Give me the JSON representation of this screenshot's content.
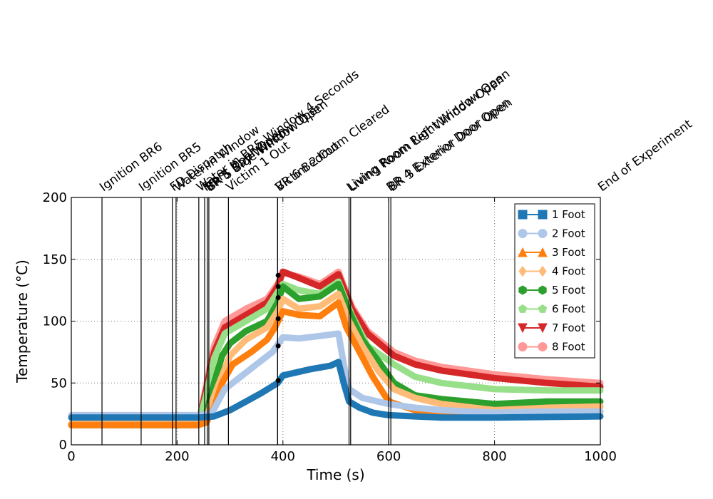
{
  "chart_data": {
    "type": "line",
    "title": "",
    "xlabel": "Time (s)",
    "ylabel": "Temperature (°C)",
    "xlim": [
      0,
      1000
    ],
    "ylim": [
      0,
      200
    ],
    "xticks": [
      0,
      200,
      400,
      600,
      800,
      1000
    ],
    "yticks": [
      0,
      50,
      100,
      150,
      200
    ],
    "grid": "dotted",
    "legend_position": "top-right",
    "events": [
      {
        "t": 58,
        "label": "Ignition BR6"
      },
      {
        "t": 132,
        "label": "Ignition BR5"
      },
      {
        "t": 191,
        "label": "FD Dispatch"
      },
      {
        "t": 198,
        "label": "Water in Window"
      },
      {
        "t": 241,
        "label": "Water in BR5 Window 4 Seconds"
      },
      {
        "t": 252,
        "label": "Front Door Open"
      },
      {
        "t": 257,
        "label": "BR 5 Bay Window Open"
      },
      {
        "t": 260,
        "label": "BR 5 Side Window Open"
      },
      {
        "t": 297,
        "label": "Victim 1 Out"
      },
      {
        "t": 390,
        "label": "Victim 2 Out"
      },
      {
        "t": 390,
        "label": "BR 6 Bedroom Cleared"
      },
      {
        "t": 525,
        "label": "Living Room Right Window Open"
      },
      {
        "t": 528,
        "label": "Living Room Left Window Open"
      },
      {
        "t": 600,
        "label": "BR 4 Exterior Door Open"
      },
      {
        "t": 604,
        "label": "BR 3 Exterior Door Open"
      },
      {
        "t": 1000,
        "label": "End of Experiment"
      }
    ],
    "markers": [
      {
        "x": 391,
        "y": 137
      },
      {
        "x": 391,
        "y": 128
      },
      {
        "x": 391,
        "y": 119
      },
      {
        "x": 391,
        "y": 102
      },
      {
        "x": 391,
        "y": 80
      },
      {
        "x": 391,
        "y": 52
      }
    ],
    "series": [
      {
        "name": "1 Foot",
        "color": "#1f77b4",
        "marker": "square",
        "points": [
          [
            0,
            22
          ],
          [
            240,
            22
          ],
          [
            270,
            23
          ],
          [
            300,
            28
          ],
          [
            330,
            35
          ],
          [
            360,
            42
          ],
          [
            390,
            50
          ],
          [
            400,
            56
          ],
          [
            450,
            61
          ],
          [
            490,
            64
          ],
          [
            505,
            67
          ],
          [
            515,
            50
          ],
          [
            525,
            35
          ],
          [
            545,
            30
          ],
          [
            570,
            26
          ],
          [
            600,
            24
          ],
          [
            650,
            23
          ],
          [
            700,
            22
          ],
          [
            800,
            22
          ],
          [
            1000,
            23
          ]
        ]
      },
      {
        "name": "2 Foot",
        "color": "#aec7e8",
        "marker": "circle",
        "points": [
          [
            0,
            24
          ],
          [
            240,
            24
          ],
          [
            265,
            25
          ],
          [
            290,
            45
          ],
          [
            320,
            55
          ],
          [
            350,
            65
          ],
          [
            380,
            75
          ],
          [
            400,
            87
          ],
          [
            430,
            86
          ],
          [
            470,
            88
          ],
          [
            505,
            90
          ],
          [
            515,
            65
          ],
          [
            525,
            45
          ],
          [
            550,
            38
          ],
          [
            600,
            33
          ],
          [
            650,
            30
          ],
          [
            700,
            28
          ],
          [
            800,
            26
          ],
          [
            900,
            27
          ],
          [
            1000,
            27
          ]
        ]
      },
      {
        "name": "3 Foot",
        "color": "#ff7f0e",
        "marker": "triangle-up",
        "points": [
          [
            0,
            16
          ],
          [
            240,
            16
          ],
          [
            255,
            18
          ],
          [
            270,
            30
          ],
          [
            285,
            50
          ],
          [
            305,
            65
          ],
          [
            340,
            75
          ],
          [
            370,
            85
          ],
          [
            385,
            95
          ],
          [
            400,
            108
          ],
          [
            430,
            105
          ],
          [
            470,
            104
          ],
          [
            505,
            115
          ],
          [
            520,
            95
          ],
          [
            545,
            75
          ],
          [
            570,
            55
          ],
          [
            600,
            35
          ],
          [
            650,
            28
          ],
          [
            700,
            26
          ],
          [
            800,
            24
          ],
          [
            900,
            26
          ],
          [
            1000,
            27
          ]
        ]
      },
      {
        "name": "4 Foot",
        "color": "#ffbb78",
        "marker": "diamond",
        "points": [
          [
            0,
            17
          ],
          [
            240,
            17
          ],
          [
            255,
            22
          ],
          [
            275,
            45
          ],
          [
            300,
            72
          ],
          [
            330,
            85
          ],
          [
            370,
            95
          ],
          [
            390,
            108
          ],
          [
            400,
            118
          ],
          [
            430,
            110
          ],
          [
            470,
            112
          ],
          [
            505,
            122
          ],
          [
            525,
            100
          ],
          [
            550,
            80
          ],
          [
            580,
            60
          ],
          [
            610,
            45
          ],
          [
            650,
            38
          ],
          [
            700,
            33
          ],
          [
            800,
            28
          ],
          [
            900,
            30
          ],
          [
            1000,
            31
          ]
        ]
      },
      {
        "name": "5 Foot",
        "color": "#2ca02c",
        "marker": "hexagon",
        "points": [
          [
            0,
            16
          ],
          [
            240,
            16
          ],
          [
            255,
            25
          ],
          [
            270,
            50
          ],
          [
            285,
            72
          ],
          [
            300,
            82
          ],
          [
            330,
            92
          ],
          [
            370,
            100
          ],
          [
            390,
            115
          ],
          [
            400,
            128
          ],
          [
            430,
            118
          ],
          [
            470,
            120
          ],
          [
            505,
            130
          ],
          [
            525,
            108
          ],
          [
            550,
            85
          ],
          [
            580,
            68
          ],
          [
            610,
            50
          ],
          [
            650,
            40
          ],
          [
            700,
            37
          ],
          [
            800,
            33
          ],
          [
            900,
            35
          ],
          [
            1000,
            35
          ]
        ]
      },
      {
        "name": "6 Foot",
        "color": "#98df8a",
        "marker": "pentagon",
        "points": [
          [
            0,
            17
          ],
          [
            240,
            17
          ],
          [
            255,
            40
          ],
          [
            270,
            70
          ],
          [
            290,
            90
          ],
          [
            330,
            100
          ],
          [
            370,
            110
          ],
          [
            400,
            130
          ],
          [
            430,
            125
          ],
          [
            470,
            122
          ],
          [
            505,
            132
          ],
          [
            530,
            105
          ],
          [
            560,
            80
          ],
          [
            610,
            65
          ],
          [
            650,
            55
          ],
          [
            700,
            50
          ],
          [
            800,
            45
          ],
          [
            900,
            44
          ],
          [
            1000,
            44
          ]
        ]
      },
      {
        "name": "7 Foot",
        "color": "#d62728",
        "marker": "triangle-down",
        "points": [
          [
            0,
            16
          ],
          [
            240,
            16
          ],
          [
            255,
            45
          ],
          [
            270,
            75
          ],
          [
            290,
            95
          ],
          [
            330,
            105
          ],
          [
            370,
            115
          ],
          [
            390,
            128
          ],
          [
            400,
            140
          ],
          [
            430,
            135
          ],
          [
            470,
            128
          ],
          [
            505,
            138
          ],
          [
            530,
            110
          ],
          [
            560,
            90
          ],
          [
            610,
            72
          ],
          [
            650,
            65
          ],
          [
            700,
            60
          ],
          [
            800,
            54
          ],
          [
            900,
            50
          ],
          [
            1000,
            47
          ]
        ]
      },
      {
        "name": "8 Foot",
        "color": "#ff9896",
        "marker": "circle",
        "points": [
          [
            0,
            16
          ],
          [
            240,
            16
          ],
          [
            255,
            48
          ],
          [
            270,
            80
          ],
          [
            290,
            100
          ],
          [
            330,
            110
          ],
          [
            370,
            118
          ],
          [
            390,
            130
          ],
          [
            400,
            139
          ],
          [
            430,
            136
          ],
          [
            470,
            130
          ],
          [
            505,
            140
          ],
          [
            530,
            112
          ],
          [
            560,
            92
          ],
          [
            610,
            75
          ],
          [
            650,
            68
          ],
          [
            700,
            63
          ],
          [
            800,
            57
          ],
          [
            900,
            53
          ],
          [
            1000,
            50
          ]
        ]
      }
    ]
  }
}
